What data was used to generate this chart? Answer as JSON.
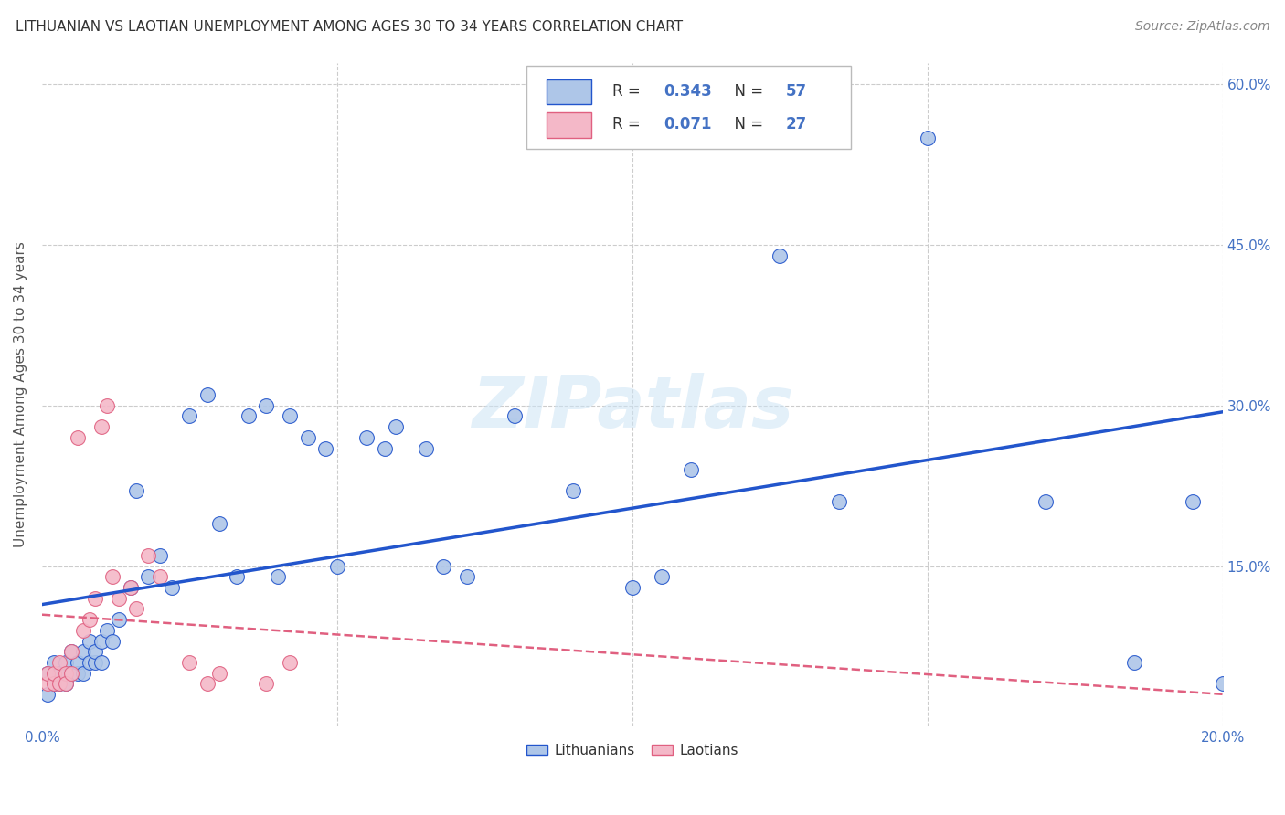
{
  "title": "LITHUANIAN VS LAOTIAN UNEMPLOYMENT AMONG AGES 30 TO 34 YEARS CORRELATION CHART",
  "source": "Source: ZipAtlas.com",
  "ylabel": "Unemployment Among Ages 30 to 34 years",
  "xlim": [
    0.0,
    0.2
  ],
  "ylim": [
    0.0,
    0.62
  ],
  "lithuanian_color": "#aec6e8",
  "laotian_color": "#f4b8c8",
  "trend_lith_color": "#2255cc",
  "trend_laot_color": "#e06080",
  "background_color": "#ffffff",
  "grid_color": "#cccccc",
  "legend_R_lith": "0.343",
  "legend_N_lith": "57",
  "legend_R_laot": "0.071",
  "legend_N_laot": "27",
  "lith_x": [
    0.001,
    0.001,
    0.002,
    0.002,
    0.003,
    0.003,
    0.004,
    0.004,
    0.005,
    0.005,
    0.006,
    0.006,
    0.007,
    0.007,
    0.008,
    0.008,
    0.009,
    0.009,
    0.01,
    0.01,
    0.011,
    0.012,
    0.013,
    0.015,
    0.016,
    0.018,
    0.02,
    0.022,
    0.025,
    0.028,
    0.03,
    0.033,
    0.035,
    0.038,
    0.04,
    0.042,
    0.045,
    0.048,
    0.05,
    0.055,
    0.058,
    0.06,
    0.065,
    0.068,
    0.072,
    0.08,
    0.09,
    0.1,
    0.105,
    0.11,
    0.125,
    0.135,
    0.15,
    0.17,
    0.185,
    0.195,
    0.2
  ],
  "lith_y": [
    0.03,
    0.05,
    0.04,
    0.06,
    0.04,
    0.05,
    0.04,
    0.06,
    0.05,
    0.07,
    0.05,
    0.06,
    0.05,
    0.07,
    0.06,
    0.08,
    0.06,
    0.07,
    0.06,
    0.08,
    0.09,
    0.08,
    0.1,
    0.13,
    0.22,
    0.14,
    0.16,
    0.13,
    0.29,
    0.31,
    0.19,
    0.14,
    0.29,
    0.3,
    0.14,
    0.29,
    0.27,
    0.26,
    0.15,
    0.27,
    0.26,
    0.28,
    0.26,
    0.15,
    0.14,
    0.29,
    0.22,
    0.13,
    0.14,
    0.24,
    0.44,
    0.21,
    0.55,
    0.21,
    0.06,
    0.21,
    0.04
  ],
  "laot_x": [
    0.001,
    0.001,
    0.002,
    0.002,
    0.003,
    0.003,
    0.004,
    0.004,
    0.005,
    0.005,
    0.006,
    0.007,
    0.008,
    0.009,
    0.01,
    0.011,
    0.012,
    0.013,
    0.015,
    0.016,
    0.018,
    0.02,
    0.025,
    0.028,
    0.03,
    0.038,
    0.042
  ],
  "laot_y": [
    0.04,
    0.05,
    0.04,
    0.05,
    0.04,
    0.06,
    0.05,
    0.04,
    0.05,
    0.07,
    0.27,
    0.09,
    0.1,
    0.12,
    0.28,
    0.3,
    0.14,
    0.12,
    0.13,
    0.11,
    0.16,
    0.14,
    0.06,
    0.04,
    0.05,
    0.04,
    0.06
  ]
}
